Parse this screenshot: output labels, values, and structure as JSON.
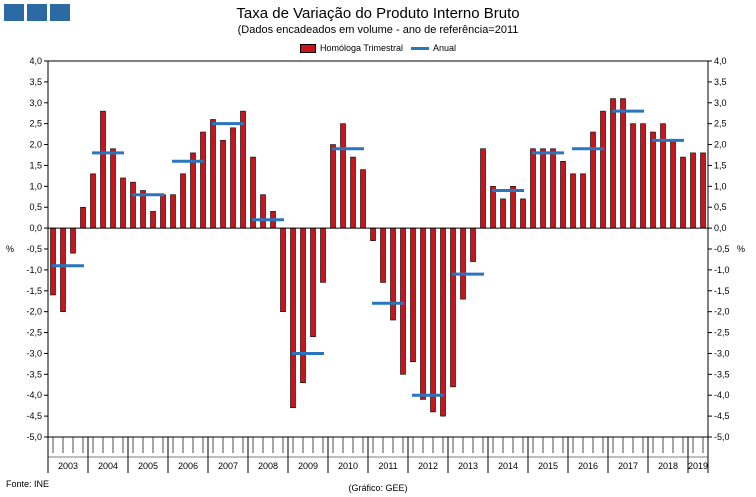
{
  "header": {
    "title": "Taxa de Variação do Produto Interno Bruto",
    "subtitle": "(Dados encadeados em volume - ano de referência=2011",
    "source": "Fonte: INE",
    "credit": "(Gráfico: GEE)"
  },
  "legend": {
    "bars": "Homóloga Trimestral",
    "line": "Anual"
  },
  "colors": {
    "bar": "#c8141b",
    "annual": "#2a75c0",
    "squares": "#2c6aa3"
  },
  "chart_data": {
    "type": "bar",
    "ylabel_left": "%",
    "ylabel_right": "%",
    "ylim": [
      -5.0,
      4.0
    ],
    "yticks": [
      "-5,0",
      "-4,5",
      "-4,0",
      "-3,5",
      "-3,0",
      "-2,5",
      "-2,0",
      "-1,5",
      "-1,0",
      "-0,5",
      "0,0",
      "0,5",
      "1,0",
      "1,5",
      "2,0",
      "2,5",
      "3,0",
      "3,5",
      "4,0"
    ],
    "ytick_values": [
      -5.0,
      -4.5,
      -4.0,
      -3.5,
      -3.0,
      -2.5,
      -2.0,
      -1.5,
      -1.0,
      -0.5,
      0.0,
      0.5,
      1.0,
      1.5,
      2.0,
      2.5,
      3.0,
      3.5,
      4.0
    ],
    "right_axis_neg_half_label": "-0,5",
    "years": [
      "2003",
      "2004",
      "2005",
      "2006",
      "2007",
      "2008",
      "2009",
      "2010",
      "2011",
      "2012",
      "2013",
      "2014",
      "2015",
      "2016",
      "2017",
      "2018",
      "2019"
    ],
    "quarters_per_year": [
      4,
      4,
      4,
      4,
      4,
      4,
      4,
      4,
      4,
      4,
      4,
      4,
      4,
      4,
      4,
      4,
      2
    ],
    "series": [
      {
        "name": "Homóloga Trimestral",
        "values": [
          -1.6,
          -2.0,
          -0.6,
          0.5,
          1.3,
          2.8,
          1.9,
          1.2,
          1.1,
          0.9,
          0.4,
          0.8,
          0.8,
          1.3,
          1.8,
          2.3,
          2.6,
          2.1,
          2.4,
          2.8,
          1.7,
          0.8,
          0.4,
          -2.0,
          -4.3,
          -3.7,
          -2.6,
          -1.3,
          2.0,
          2.5,
          1.7,
          1.4,
          -0.3,
          -1.3,
          -2.2,
          -3.5,
          -3.2,
          -4.1,
          -4.4,
          -4.5,
          -3.8,
          -1.7,
          -0.8,
          1.9,
          1.0,
          0.7,
          1.0,
          0.7,
          1.9,
          1.9,
          1.9,
          1.6,
          1.3,
          1.3,
          2.3,
          2.8,
          3.1,
          3.1,
          2.5,
          2.5,
          2.3,
          2.5,
          2.1,
          1.7,
          1.8,
          1.8
        ]
      },
      {
        "name": "Anual",
        "values": [
          -0.9,
          1.8,
          0.8,
          1.6,
          2.5,
          0.2,
          -3.0,
          1.9,
          -1.8,
          -4.0,
          -1.1,
          0.9,
          1.8,
          1.9,
          2.8,
          2.1
        ]
      }
    ]
  }
}
